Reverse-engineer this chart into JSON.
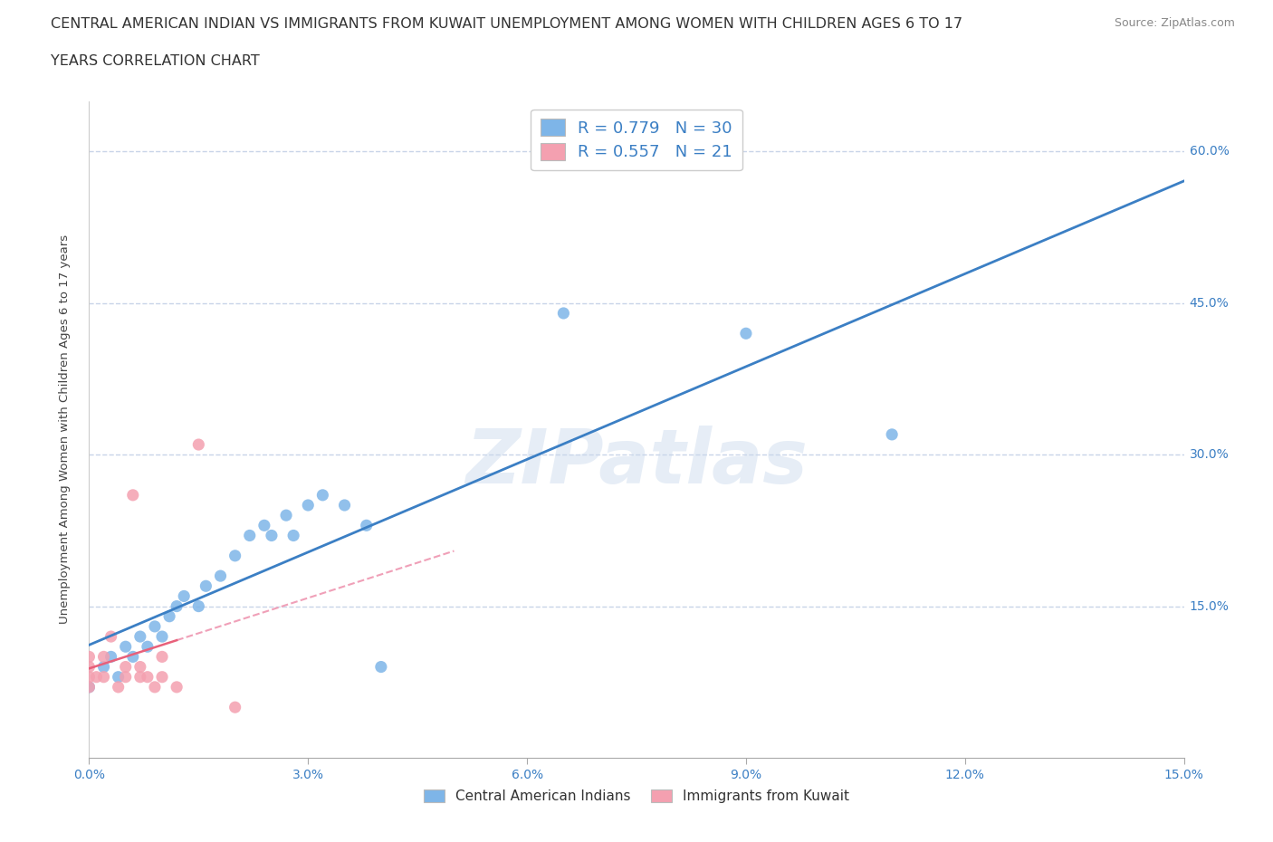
{
  "title_line1": "CENTRAL AMERICAN INDIAN VS IMMIGRANTS FROM KUWAIT UNEMPLOYMENT AMONG WOMEN WITH CHILDREN AGES 6 TO 17",
  "title_line2": "YEARS CORRELATION CHART",
  "source": "Source: ZipAtlas.com",
  "ylabel": "Unemployment Among Women with Children Ages 6 to 17 years",
  "xlim": [
    0,
    0.15
  ],
  "ylim": [
    0,
    0.65
  ],
  "xtick_labels": [
    "0.0%",
    "3.0%",
    "6.0%",
    "9.0%",
    "12.0%",
    "15.0%"
  ],
  "xtick_vals": [
    0,
    0.03,
    0.06,
    0.09,
    0.12,
    0.15
  ],
  "ytick_labels": [
    "15.0%",
    "30.0%",
    "45.0%",
    "60.0%"
  ],
  "ytick_vals": [
    0.15,
    0.3,
    0.45,
    0.6
  ],
  "R_blue": 0.779,
  "N_blue": 30,
  "R_pink": 0.557,
  "N_pink": 21,
  "blue_color": "#7EB5E8",
  "pink_color": "#F4A0B0",
  "trendline_blue_color": "#3B7FC4",
  "trendline_pink_solid_color": "#E8607A",
  "trendline_pink_dashed_color": "#F0A0B8",
  "watermark": "ZIPatlas",
  "legend_label_blue": "Central American Indians",
  "legend_label_pink": "Immigrants from Kuwait",
  "blue_scatter_x": [
    0.0,
    0.002,
    0.003,
    0.004,
    0.005,
    0.006,
    0.007,
    0.008,
    0.009,
    0.01,
    0.011,
    0.012,
    0.013,
    0.015,
    0.016,
    0.018,
    0.02,
    0.022,
    0.024,
    0.025,
    0.027,
    0.028,
    0.03,
    0.032,
    0.035,
    0.038,
    0.04,
    0.065,
    0.09,
    0.11
  ],
  "blue_scatter_y": [
    0.07,
    0.09,
    0.1,
    0.08,
    0.11,
    0.1,
    0.12,
    0.11,
    0.13,
    0.12,
    0.14,
    0.15,
    0.16,
    0.15,
    0.17,
    0.18,
    0.2,
    0.22,
    0.23,
    0.22,
    0.24,
    0.22,
    0.25,
    0.26,
    0.25,
    0.23,
    0.09,
    0.44,
    0.42,
    0.32
  ],
  "pink_scatter_x": [
    0.0,
    0.0,
    0.0,
    0.0,
    0.001,
    0.002,
    0.002,
    0.003,
    0.004,
    0.005,
    0.005,
    0.006,
    0.007,
    0.007,
    0.008,
    0.009,
    0.01,
    0.01,
    0.012,
    0.015,
    0.02
  ],
  "pink_scatter_y": [
    0.07,
    0.08,
    0.09,
    0.1,
    0.08,
    0.08,
    0.1,
    0.12,
    0.07,
    0.08,
    0.09,
    0.26,
    0.08,
    0.09,
    0.08,
    0.07,
    0.08,
    0.1,
    0.07,
    0.31,
    0.05
  ],
  "grid_color": "#C8D4E8",
  "bg_color": "#FFFFFF",
  "title_fontsize": 11.5,
  "axis_label_fontsize": 9.5,
  "tick_fontsize": 10,
  "legend_fontsize": 13,
  "watermark_color": "#C8D8EC",
  "watermark_fontsize": 60
}
